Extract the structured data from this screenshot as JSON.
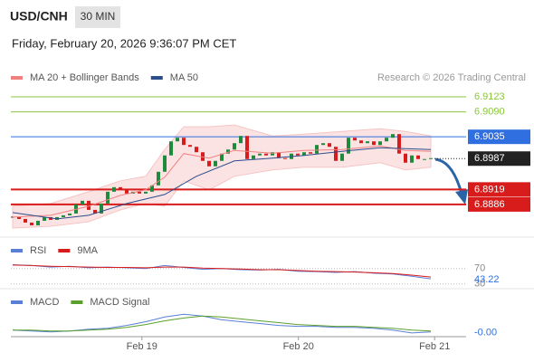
{
  "header": {
    "symbol": "USD/CNH",
    "timeframe": "30 MIN",
    "datetime": "Friday, February 20, 2026 9:36:07 PM CET"
  },
  "chart_data": [
    {
      "type": "candlestick",
      "credit": "Research © 2026 Trading Central",
      "ylim": [
        6.8814,
        6.9157
      ],
      "xlim": [
        0,
        66
      ],
      "up_color": "#1e8a3c",
      "down_color": "#d81b1b",
      "close": [
        6.8858,
        6.8854,
        6.8846,
        6.884,
        6.885,
        6.8858,
        6.8852,
        6.8858,
        6.8862,
        6.8866,
        6.8886,
        6.8894,
        6.8874,
        6.8866,
        6.8888,
        6.8914,
        6.8924,
        6.8918,
        6.891,
        6.8914,
        6.891,
        6.8914,
        6.8928,
        6.8958,
        6.8994,
        6.9025,
        6.9033,
        6.9017,
        6.9013,
        6.9001,
        6.8982,
        6.897,
        6.8982,
        6.8998,
        6.9007,
        6.9021,
        6.9037,
        6.8986,
        6.8994,
        6.8998,
        6.8994,
        6.9001,
        6.8988,
        6.8986,
        6.8998,
        6.8994,
        6.9001,
        6.8998,
        6.9017,
        6.9021,
        6.9013,
        6.8982,
        6.8998,
        6.9033,
        6.9027,
        6.9021,
        6.9025,
        6.9017,
        6.9025,
        6.9033,
        6.9041,
        6.8998,
        6.8978,
        6.8994,
        6.8986,
        6.8986,
        6.8988
      ],
      "series": [
        {
          "name": "MA 20 + Bollinger Bands",
          "color": "#f08080",
          "x": [
            0,
            6,
            12,
            17,
            21,
            24,
            27,
            31,
            35,
            41,
            46,
            52,
            58,
            62,
            66
          ],
          "values": [
            6.8858,
            6.8862,
            6.8882,
            6.8906,
            6.8918,
            6.8946,
            6.8998,
            6.8988,
            6.9005,
            6.8999,
            6.9005,
            6.9007,
            6.9015,
            6.9005,
            6.9003
          ],
          "upper": [
            6.8882,
            6.8888,
            6.8914,
            6.8938,
            6.8948,
            6.9007,
            6.9057,
            6.9057,
            6.9061,
            6.9037,
            6.9041,
            6.9047,
            6.9053,
            6.9047,
            6.9037
          ],
          "lower": [
            6.8834,
            6.8838,
            6.8848,
            6.8874,
            6.8888,
            6.8882,
            6.8938,
            6.8918,
            6.8948,
            6.8962,
            6.8968,
            6.8968,
            6.8978,
            6.8962,
            6.8968
          ]
        },
        {
          "name": "MA 50",
          "color": "#2b4d8c",
          "x": [
            0,
            7,
            12,
            18,
            24,
            29,
            35,
            41,
            46,
            52,
            58,
            66
          ],
          "values": [
            6.8868,
            6.8854,
            6.8862,
            6.8888,
            6.8908,
            6.8948,
            6.8982,
            6.8988,
            6.8994,
            6.9003,
            6.9011,
            6.9007
          ]
        }
      ],
      "levels": [
        {
          "value": 6.9123,
          "color": "#8cc63f",
          "style": "line"
        },
        {
          "value": 6.909,
          "label": "6.9090",
          "color": "#8cc63f",
          "style": "line"
        },
        {
          "value": 6.9035,
          "color": "#2f6fe0",
          "style": "box"
        },
        {
          "value": 6.8987,
          "color": "#222222",
          "style": "current"
        },
        {
          "value": 6.8919,
          "color": "#d81b1b",
          "style": "thick-box"
        },
        {
          "value": 6.8886,
          "color": "#d81b1b",
          "style": "thick-box"
        }
      ]
    },
    {
      "type": "line",
      "ylim": [
        20,
        100
      ],
      "xlim": [
        0,
        66
      ],
      "yticks": [
        70,
        30
      ],
      "series": [
        {
          "name": "RSI",
          "color": "#5b7fd6",
          "x": [
            0,
            3,
            6,
            9,
            12,
            15,
            18,
            21,
            24,
            27,
            30,
            33,
            36,
            39,
            42,
            45,
            48,
            51,
            54,
            57,
            60,
            63,
            66
          ],
          "values": [
            80,
            78,
            74,
            76,
            72,
            74,
            72,
            70,
            78,
            73,
            68,
            70,
            67,
            66,
            68,
            63,
            62,
            60,
            62,
            58,
            56,
            50,
            43.22
          ]
        },
        {
          "name": "9MA",
          "color": "#d81b1b",
          "x": [
            0,
            3,
            6,
            9,
            12,
            15,
            18,
            21,
            24,
            27,
            30,
            33,
            36,
            39,
            42,
            45,
            48,
            51,
            54,
            57,
            60,
            63,
            66
          ],
          "values": [
            79,
            78,
            76,
            75,
            74,
            73,
            73,
            72,
            74,
            74,
            71,
            70,
            69,
            67,
            67,
            65,
            63,
            62,
            61,
            59,
            57,
            53,
            48
          ]
        }
      ]
    },
    {
      "type": "line",
      "ylim": [
        -0.0006,
        0.0025
      ],
      "xlim": [
        0,
        66
      ],
      "xticks": [
        {
          "value": 20.4,
          "label": "Feb 19"
        },
        {
          "value": 45.1,
          "label": "Feb 20"
        },
        {
          "value": 66.6,
          "label": "Feb 21"
        }
      ],
      "series": [
        {
          "name": "MACD",
          "color": "#5b7fd6",
          "last_label": "-0.00",
          "x": [
            0,
            3,
            6,
            9,
            12,
            15,
            18,
            21,
            24,
            27,
            30,
            33,
            36,
            39,
            42,
            45,
            48,
            51,
            54,
            57,
            60,
            63,
            66
          ],
          "values": [
            0.0001,
            0,
            -0.0001,
            0,
            0.0002,
            0.0003,
            0.0006,
            0.001,
            0.0015,
            0.0018,
            0.0016,
            0.0012,
            0.001,
            0.0008,
            0.0006,
            0.0005,
            0.0005,
            0.0004,
            0.0004,
            0.0003,
            0.0001,
            -0.0002,
            -0.0001
          ]
        },
        {
          "name": "MACD Signal",
          "color": "#5aa02c",
          "x": [
            0,
            3,
            6,
            9,
            12,
            15,
            18,
            21,
            24,
            27,
            30,
            33,
            36,
            39,
            42,
            45,
            48,
            51,
            54,
            57,
            60,
            63,
            66
          ],
          "values": [
            0.0001,
            0.0001,
            0,
            0,
            0.0001,
            0.0002,
            0.0004,
            0.0007,
            0.0011,
            0.0014,
            0.0016,
            0.0015,
            0.0013,
            0.0011,
            0.0009,
            0.0007,
            0.0006,
            0.0005,
            0.0005,
            0.0004,
            0.0003,
            0.0001,
            0
          ]
        }
      ]
    }
  ]
}
